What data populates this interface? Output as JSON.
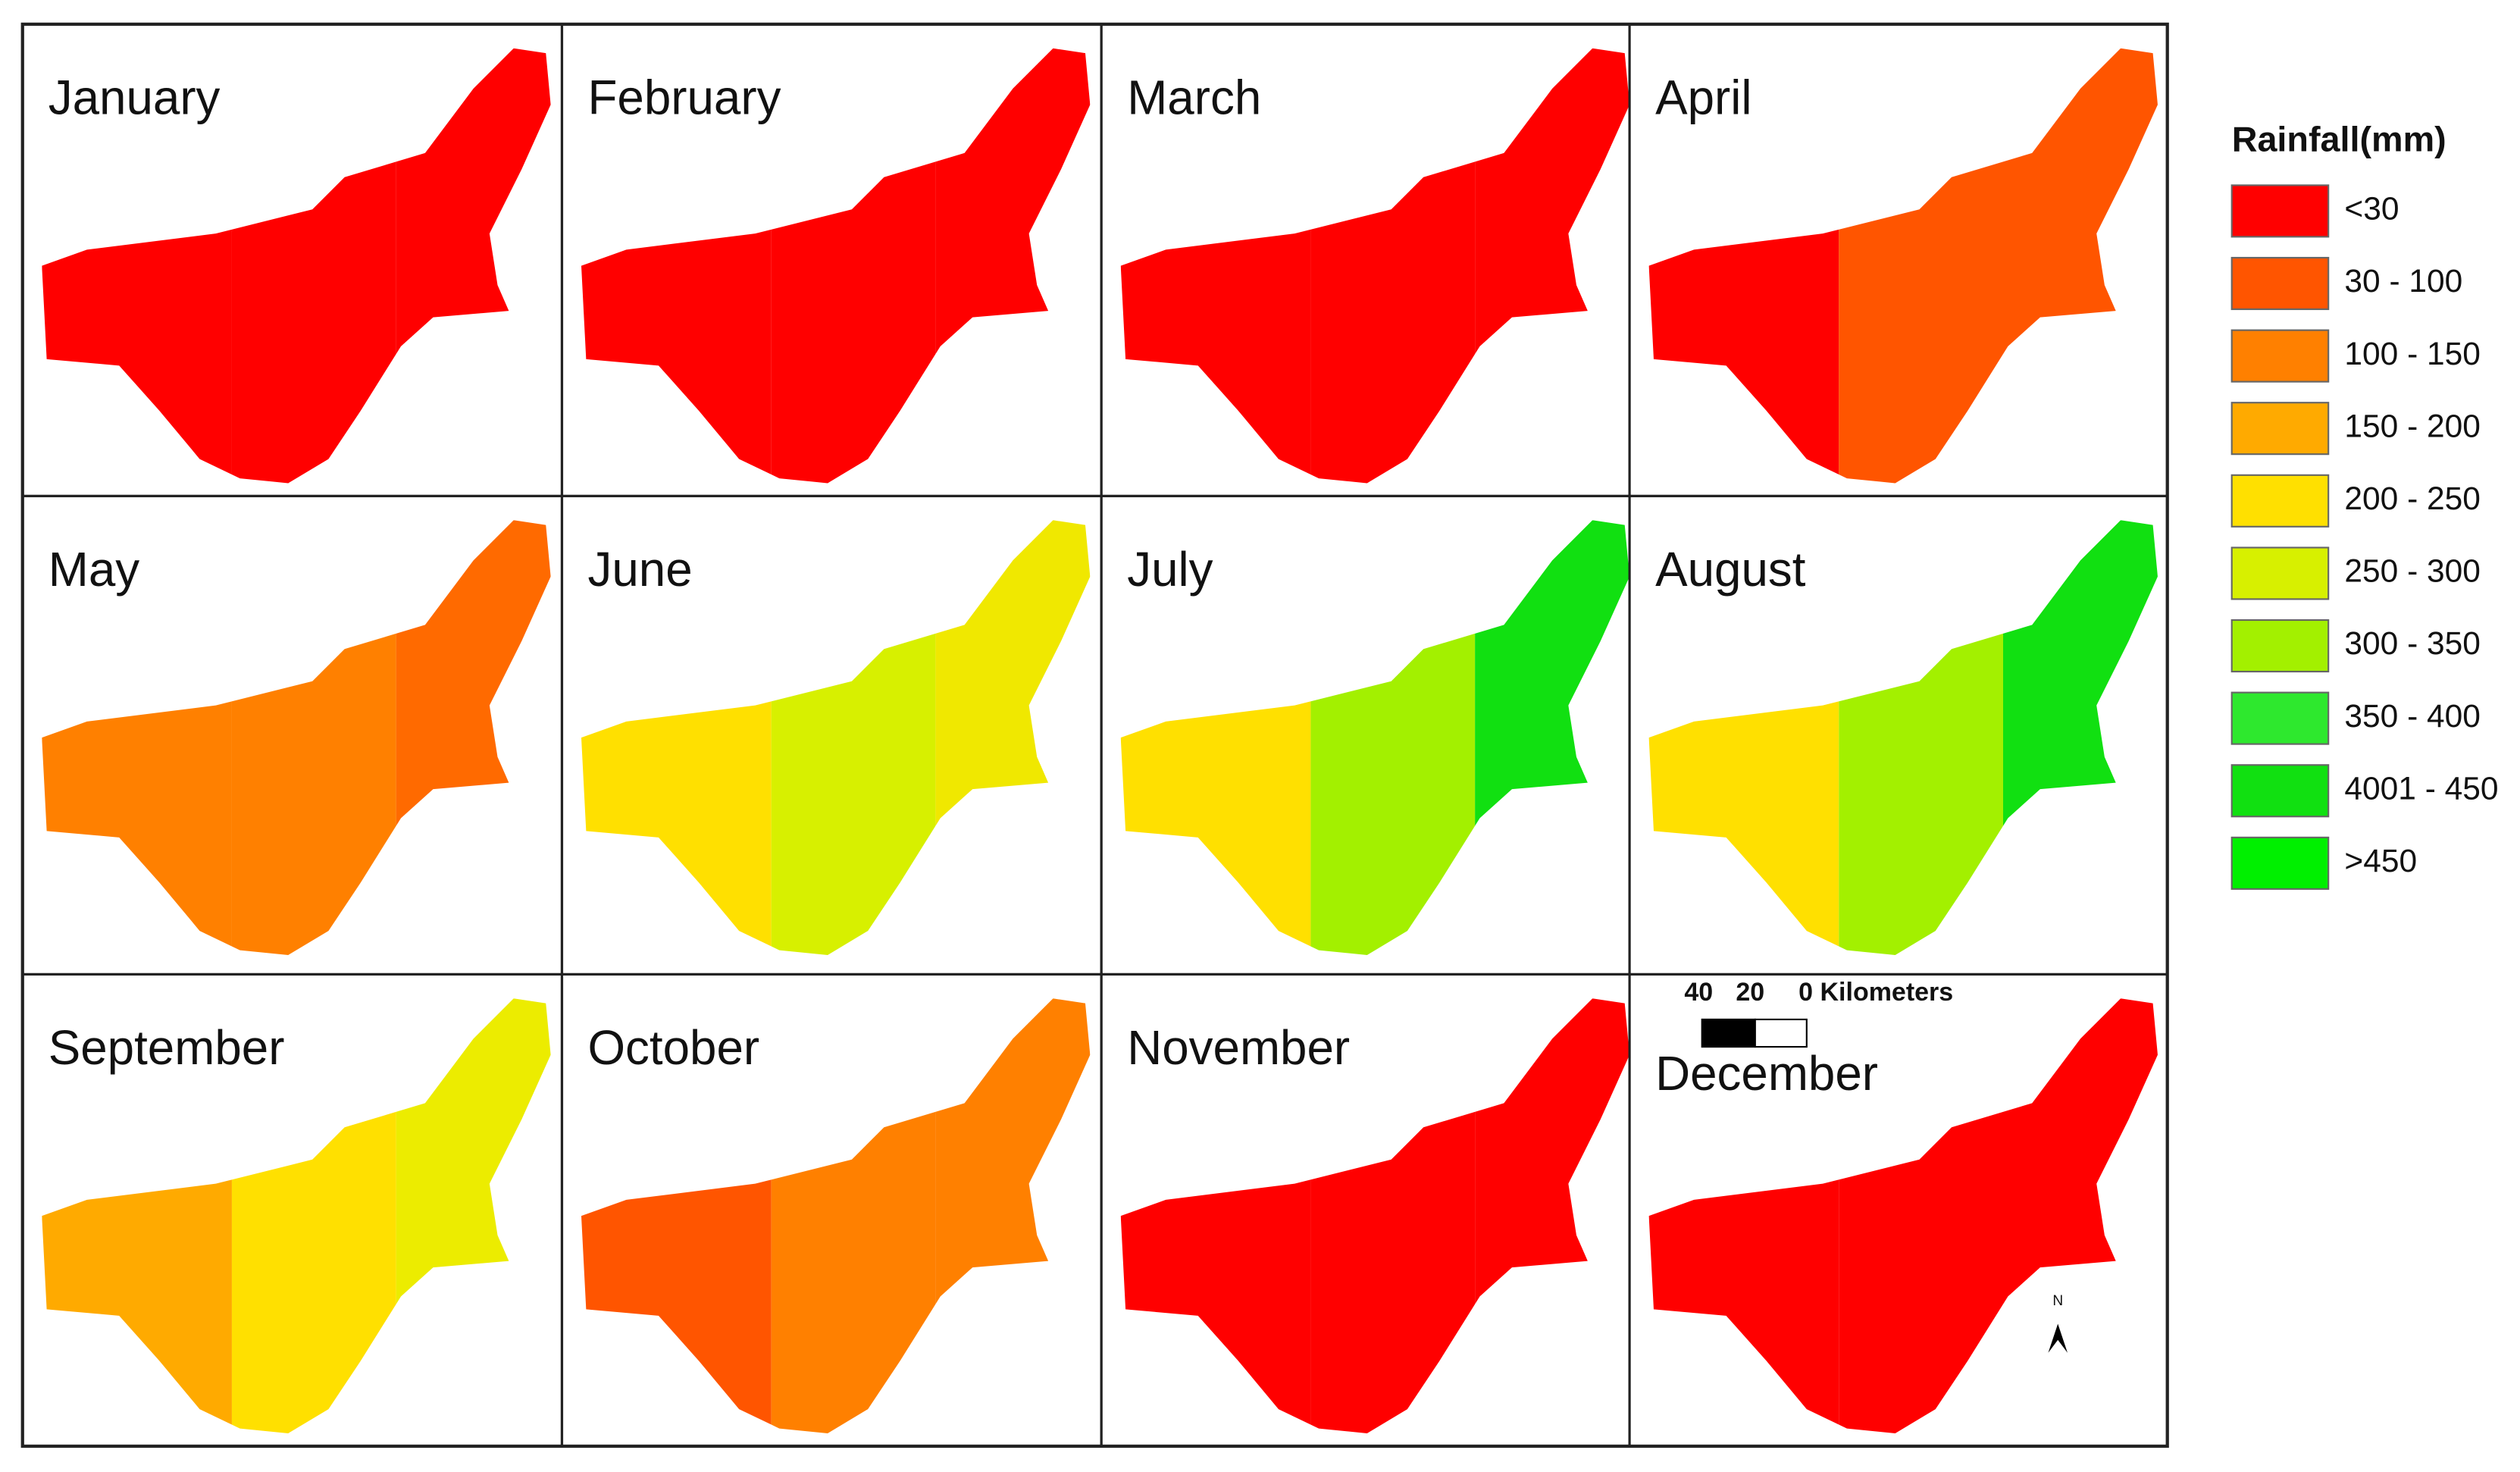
{
  "panels": [
    {
      "label": "January",
      "colors": [
        "#ff0000",
        "#ff0000",
        "#ff0000"
      ]
    },
    {
      "label": "February",
      "colors": [
        "#ff0000",
        "#ff0000",
        "#ff0000"
      ]
    },
    {
      "label": "March",
      "colors": [
        "#ff0000",
        "#ff0000",
        "#ff0000"
      ]
    },
    {
      "label": "April",
      "colors": [
        "#ff0000",
        "#ff5500",
        "#ff5500"
      ]
    },
    {
      "label": "May",
      "colors": [
        "#ff8000",
        "#ff8000",
        "#ff6a00"
      ]
    },
    {
      "label": "June",
      "colors": [
        "#ffe000",
        "#d7f000",
        "#f0e800"
      ]
    },
    {
      "label": "July",
      "colors": [
        "#ffe000",
        "#a3f000",
        "#11e011"
      ]
    },
    {
      "label": "August",
      "colors": [
        "#ffe000",
        "#a3f000",
        "#11e011"
      ]
    },
    {
      "label": "September",
      "colors": [
        "#ffaa00",
        "#ffe000",
        "#ecec00"
      ]
    },
    {
      "label": "October",
      "colors": [
        "#ff5500",
        "#ff8000",
        "#ff8000"
      ]
    },
    {
      "label": "November",
      "colors": [
        "#ff0000",
        "#ff0000",
        "#ff0000"
      ]
    },
    {
      "label": "December",
      "colors": [
        "#ff0000",
        "#ff0000",
        "#ff0000"
      ]
    }
  ],
  "legend": {
    "title": "Rainfall(mm)",
    "items": [
      {
        "label": "<30",
        "color": "#ff0000"
      },
      {
        "label": "30 - 100",
        "color": "#ff5500"
      },
      {
        "label": "100 - 150",
        "color": "#ff8000"
      },
      {
        "label": "150 - 200",
        "color": "#ffaa00"
      },
      {
        "label": "200 - 250",
        "color": "#ffe000"
      },
      {
        "label": "250 - 300",
        "color": "#d7f000"
      },
      {
        "label": "300 - 350",
        "color": "#a3f000"
      },
      {
        "label": "350 - 400",
        "color": "#2ee82e"
      },
      {
        "label": "4001 - 450",
        "color": "#11e011"
      },
      {
        "label": ">450",
        "color": "#00f000"
      }
    ]
  },
  "scale_bar": {
    "labels": [
      "40",
      "20",
      "0 Kilometers"
    ]
  },
  "north_arrow": "N"
}
